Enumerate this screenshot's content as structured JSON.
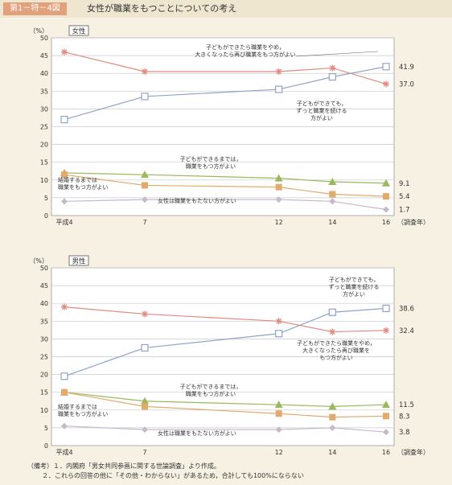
{
  "figure": {
    "number": "第1－特－4図",
    "title": "女性が職業をもつことについての考え"
  },
  "notes": [
    "（備考）１．内閣府「男女共同参画に関する世論調査」より作成。",
    "２．これらの回答の他に「その他・わからない」があるため，合計しても100%にならない"
  ],
  "chart_data": [
    {
      "type": "line",
      "panel_label": "女性",
      "ylabel": "（%）",
      "ylim": [
        0,
        50
      ],
      "yticks": [
        0,
        5,
        10,
        15,
        20,
        25,
        30,
        35,
        40,
        45,
        50
      ],
      "x": [
        "平成4",
        "7",
        "12",
        "14",
        "16"
      ],
      "x_positions": [
        4,
        7,
        12,
        14,
        16
      ],
      "xlabel": "（調査年）",
      "series": [
        {
          "key": "stop",
          "name": "子どもができたら職業をやめ、大きくなったら再び職業をもつ方がよい",
          "values": [
            46.0,
            40.5,
            40.5,
            41.5,
            37.0
          ],
          "end_label": "37.0",
          "color": "#e08a80",
          "marker": "star"
        },
        {
          "key": "continue",
          "name": "子どもができても、ずっと職業を続ける方がよい",
          "values": [
            27.0,
            33.5,
            35.5,
            39.0,
            41.9
          ],
          "end_label": "41.9",
          "color": "#8fa3c8",
          "marker": "square"
        },
        {
          "key": "until_child",
          "name": "子どもができるまでは、職業をもつ方がよい",
          "values": [
            12.0,
            11.5,
            10.5,
            9.5,
            9.1
          ],
          "end_label": "9.1",
          "color": "#9ab85c",
          "marker": "triangle"
        },
        {
          "key": "until_marriage",
          "name": "結婚するまでは職業をもつ方がよい",
          "values": [
            11.5,
            8.5,
            8.0,
            6.0,
            5.4
          ],
          "end_label": "5.4",
          "color": "#e2aa6c",
          "marker": "filled-square"
        },
        {
          "key": "no_job",
          "name": "女性は職業をもたない方がよい",
          "values": [
            4.0,
            4.5,
            4.5,
            4.0,
            1.7
          ],
          "end_label": "1.7",
          "color": "#c8b8cc",
          "marker": "diamond"
        }
      ]
    },
    {
      "type": "line",
      "panel_label": "男性",
      "ylabel": "（%）",
      "ylim": [
        0,
        50
      ],
      "yticks": [
        0,
        5,
        10,
        15,
        20,
        25,
        30,
        35,
        40,
        45,
        50
      ],
      "x": [
        "平成4",
        "7",
        "12",
        "14",
        "16"
      ],
      "x_positions": [
        4,
        7,
        12,
        14,
        16
      ],
      "xlabel": "（調査年）",
      "series": [
        {
          "key": "continue",
          "name": "子どもができても、ずっと職業を続ける方がよい",
          "values": [
            19.5,
            27.5,
            31.5,
            37.5,
            38.6
          ],
          "end_label": "38.6",
          "color": "#8fa3c8",
          "marker": "square"
        },
        {
          "key": "stop",
          "name": "子どもができたら職業をやめ、大きくなったら再び職業をもつ方がよい",
          "values": [
            39.0,
            37.0,
            35.0,
            32.0,
            32.4
          ],
          "end_label": "32.4",
          "color": "#e08a80",
          "marker": "star"
        },
        {
          "key": "until_child",
          "name": "子どもができるまでは、職業をもつ方がよい",
          "values": [
            15.0,
            12.5,
            11.5,
            11.0,
            11.5
          ],
          "end_label": "11.5",
          "color": "#9ab85c",
          "marker": "triangle"
        },
        {
          "key": "until_marriage",
          "name": "結婚するまでは職業をもつ方がよい",
          "values": [
            15.0,
            11.0,
            9.0,
            8.0,
            8.3
          ],
          "end_label": "8.3",
          "color": "#e2aa6c",
          "marker": "filled-square"
        },
        {
          "key": "no_job",
          "name": "女性は職業をもたない方がよい",
          "values": [
            5.5,
            4.5,
            4.5,
            5.0,
            3.8
          ],
          "end_label": "3.8",
          "color": "#c8b8cc",
          "marker": "diamond"
        }
      ]
    }
  ],
  "annotations": [
    [
      {
        "key": "stop",
        "lines": [
          "子どもができたら職業をやめ，",
          "大きくなったら再び職業をもつ方がよい"
        ]
      },
      {
        "key": "continue",
        "lines": [
          "子どもができても，",
          "ずっと職業を続ける",
          "方がよい"
        ]
      },
      {
        "key": "until_child",
        "lines": [
          "子どもができるまでは，",
          "職業をもつ方がよい"
        ]
      },
      {
        "key": "until_marriage",
        "lines": [
          "結婚するまでは",
          "職業をもつ方がよい"
        ]
      },
      {
        "key": "no_job",
        "lines": [
          "女性は職業をもたない方がよい"
        ]
      }
    ],
    [
      {
        "key": "continue",
        "lines": [
          "子どもができても，",
          "ずっと職業を続ける",
          "方がよい"
        ]
      },
      {
        "key": "stop",
        "lines": [
          "子どもができたら職業をやめ，",
          "大きくなったら再び職業を",
          "もつ方がよい"
        ]
      },
      {
        "key": "until_child",
        "lines": [
          "子どもができるまでは，",
          "職業をもつ方がよい"
        ]
      },
      {
        "key": "until_marriage",
        "lines": [
          "結婚するまでは",
          "職業をもつ方がよい"
        ]
      },
      {
        "key": "no_job",
        "lines": [
          "女性は職業をもたない方がよい"
        ]
      }
    ]
  ]
}
